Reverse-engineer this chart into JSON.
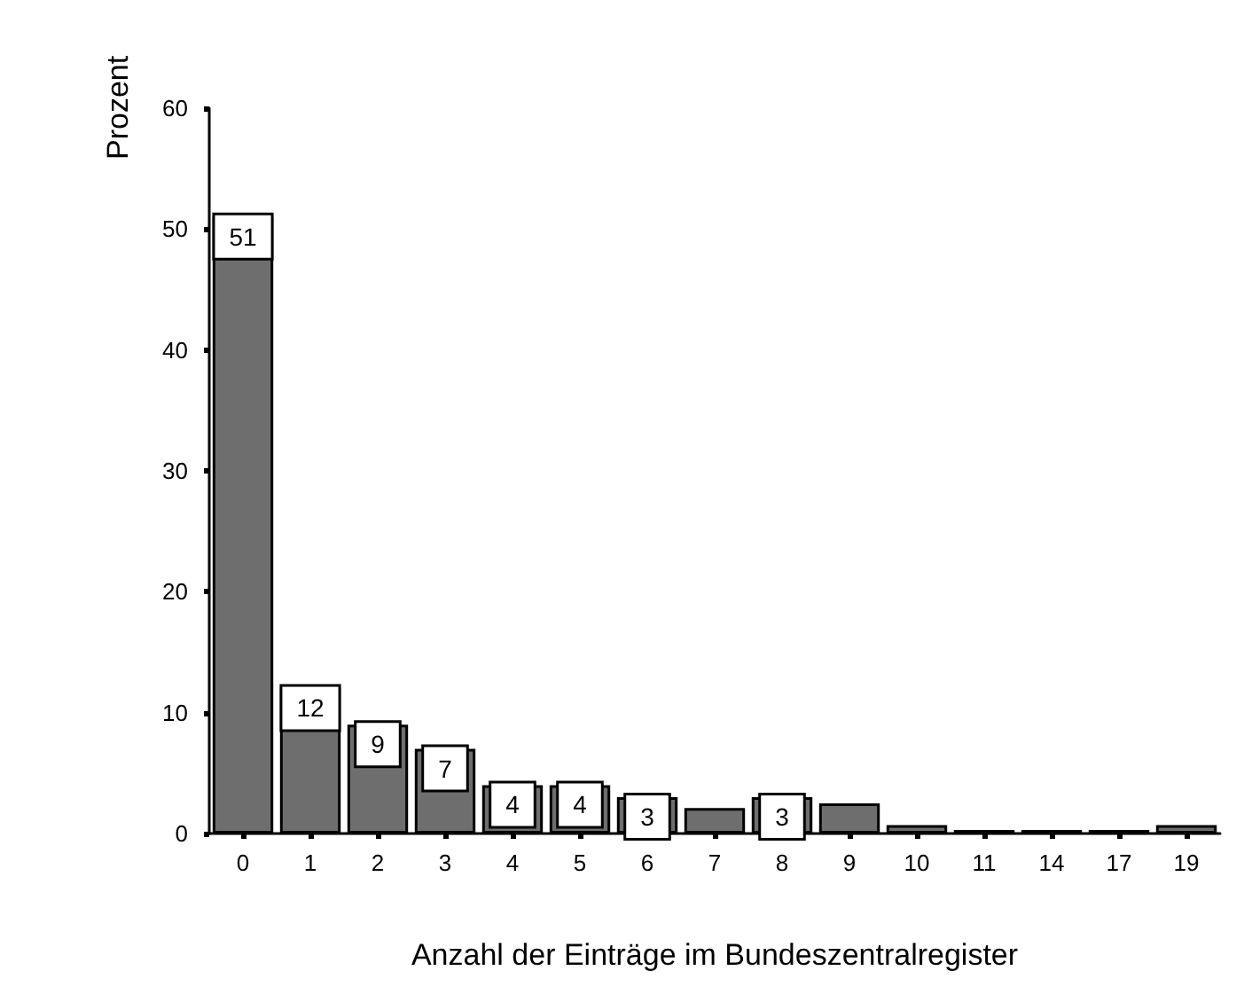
{
  "chart_data": {
    "type": "bar",
    "xlabel": "Anzahl der Einträge im Bundeszentralregister",
    "ylabel": "Prozent",
    "categories": [
      "0",
      "1",
      "2",
      "3",
      "4",
      "5",
      "6",
      "7",
      "8",
      "9",
      "10",
      "11",
      "14",
      "17",
      "19"
    ],
    "values": [
      51,
      12,
      9,
      7,
      4,
      4,
      3,
      2.1,
      3,
      2.5,
      0.7,
      0.3,
      0.3,
      0.3,
      0.7
    ],
    "value_labels": [
      "51",
      "12",
      "9",
      "7",
      "4",
      "4",
      "3",
      null,
      "3",
      null,
      null,
      null,
      null,
      null,
      null
    ],
    "color": "#6e6e6e",
    "ylim": [
      0,
      60
    ],
    "yticks": [
      0,
      10,
      20,
      30,
      40,
      50,
      60
    ],
    "grid": false
  }
}
